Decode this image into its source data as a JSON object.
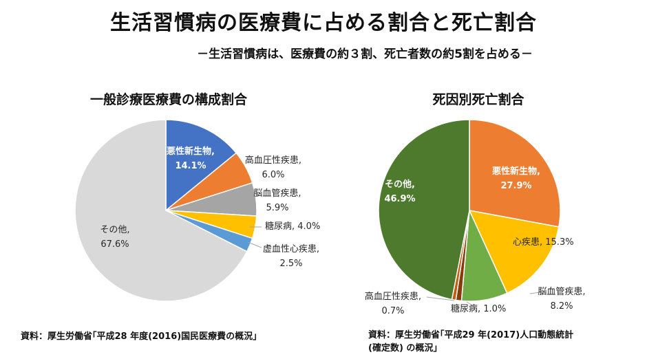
{
  "title": "生活習慣病の医療費に占める割合と死亡割合",
  "subtitle": "－生活習慣病は、医療費の約３割、死亡者数の約5割を占める－",
  "chart_data": [
    {
      "type": "pie",
      "title": "一般診療医療費の構成割合",
      "slices": [
        {
          "label": "悪性新生物,",
          "value": 14.1,
          "value_text": "14.1%",
          "color": "#4472C4"
        },
        {
          "label": "高血圧性疾患,",
          "value": 6.0,
          "value_text": "6.0%",
          "color": "#ED7D31"
        },
        {
          "label": "脳血管疾患,",
          "value": 5.9,
          "value_text": "5.9%",
          "color": "#A5A5A5"
        },
        {
          "label": "糖尿病,",
          "value": 4.0,
          "value_text": "4.0%",
          "color": "#FFC000"
        },
        {
          "label": "虚血性心疾患,",
          "value": 2.5,
          "value_text": "2.5%",
          "color": "#5B9BD5"
        },
        {
          "label": "その他,",
          "value": 67.6,
          "value_text": "67.6%",
          "color": "#D9D9D9"
        }
      ],
      "source": "資料：厚生労働省｢平成28 年度(2016)国民医療費の概況｣"
    },
    {
      "type": "pie",
      "title": "死因別死亡割合",
      "slices": [
        {
          "label": "悪性新生物,",
          "value": 27.9,
          "value_text": "27.9%",
          "color": "#ED7D31"
        },
        {
          "label": "心疾患,",
          "value": 15.3,
          "value_text": "15.3%",
          "color": "#FFC000"
        },
        {
          "label": "脳血管疾患,",
          "value": 8.2,
          "value_text": "8.2%",
          "color": "#70AD47"
        },
        {
          "label": "糖尿病,",
          "value": 1.0,
          "value_text": "1.0%",
          "color": "#843C0C"
        },
        {
          "label": "高血圧性疾患,",
          "value": 0.7,
          "value_text": "0.7%",
          "color": "#C55A11"
        },
        {
          "label": "その他,",
          "value": 46.9,
          "value_text": "46.9%",
          "color": "#4E7A2E"
        }
      ],
      "source_lines": [
        "資料：厚生労働省｢平成29 年(2017)人口動態統計",
        "(確定数) の概況｣"
      ]
    }
  ]
}
